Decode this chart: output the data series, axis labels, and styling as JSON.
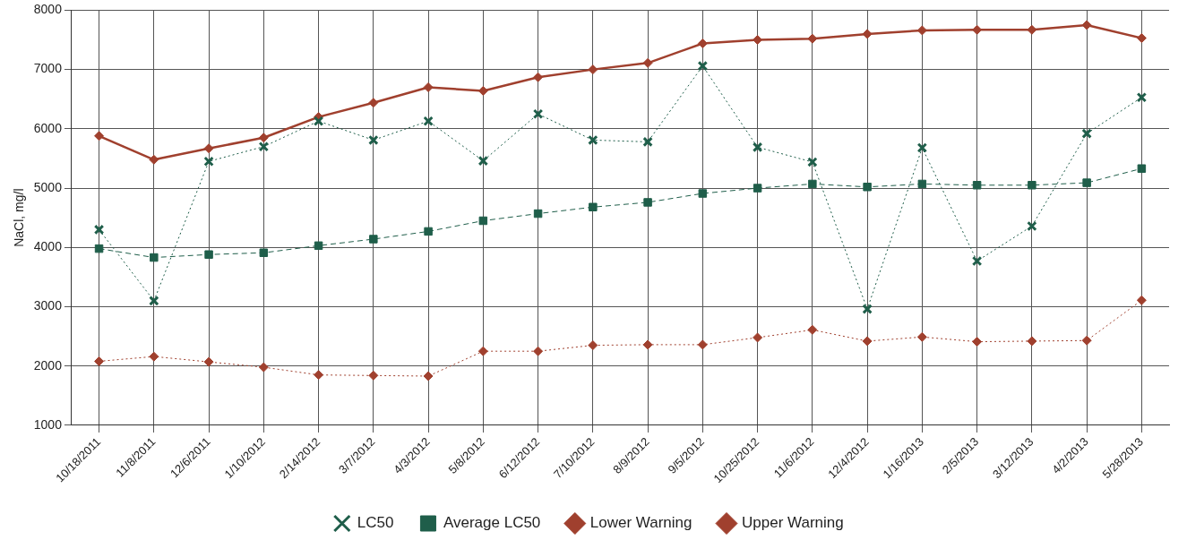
{
  "chart_data": {
    "type": "line",
    "ylabel": "NaCl, mg/l",
    "categories": [
      "10/18/2011",
      "11/8/2011",
      "12/6/2011",
      "1/10/2012",
      "2/14/2012",
      "3/7/2012",
      "4/3/2012",
      "5/8/2012",
      "6/12/2012",
      "7/10/2012",
      "8/9/2012",
      "9/5/2012",
      "10/25/2012",
      "11/6/2012",
      "12/4/2012",
      "1/16/2013",
      "2/5/2013",
      "3/12/2013",
      "4/2/2013",
      "5/28/2013"
    ],
    "series": [
      {
        "name": "LC50",
        "color": "#1f5e4a",
        "marker": "cross",
        "line_style": "dotted",
        "values": [
          4300,
          3100,
          5450,
          5700,
          6130,
          5810,
          6130,
          5460,
          6250,
          5810,
          5780,
          7060,
          5690,
          5440,
          2960,
          5680,
          3770,
          4360,
          5920,
          6530
        ]
      },
      {
        "name": "Average LC50",
        "color": "#1f5e4a",
        "marker": "square",
        "line_style": "dashed",
        "values": [
          3980,
          3830,
          3880,
          3910,
          4030,
          4140,
          4270,
          4450,
          4570,
          4680,
          4760,
          4910,
          5000,
          5070,
          5020,
          5070,
          5050,
          5050,
          5090,
          5330
        ]
      },
      {
        "name": "Lower Warning",
        "color": "#a0402e",
        "marker": "diamond",
        "line_style": "dotted",
        "values": [
          2080,
          2160,
          2070,
          1980,
          1850,
          1840,
          1830,
          2250,
          2250,
          2350,
          2360,
          2360,
          2480,
          2610,
          2420,
          2490,
          2410,
          2420,
          2430,
          3110
        ]
      },
      {
        "name": "Upper Warning",
        "color": "#a0402e",
        "marker": "diamond",
        "line_style": "solid",
        "values": [
          5880,
          5480,
          5670,
          5850,
          6200,
          6440,
          6700,
          6640,
          6870,
          7000,
          7110,
          7440,
          7500,
          7520,
          7600,
          7660,
          7670,
          7670,
          7750,
          7530
        ]
      }
    ],
    "ylim": [
      1000,
      8000
    ],
    "yticks": [
      1000,
      2000,
      3000,
      4000,
      5000,
      6000,
      7000,
      8000
    ],
    "grid": true,
    "legend": "bottom"
  }
}
